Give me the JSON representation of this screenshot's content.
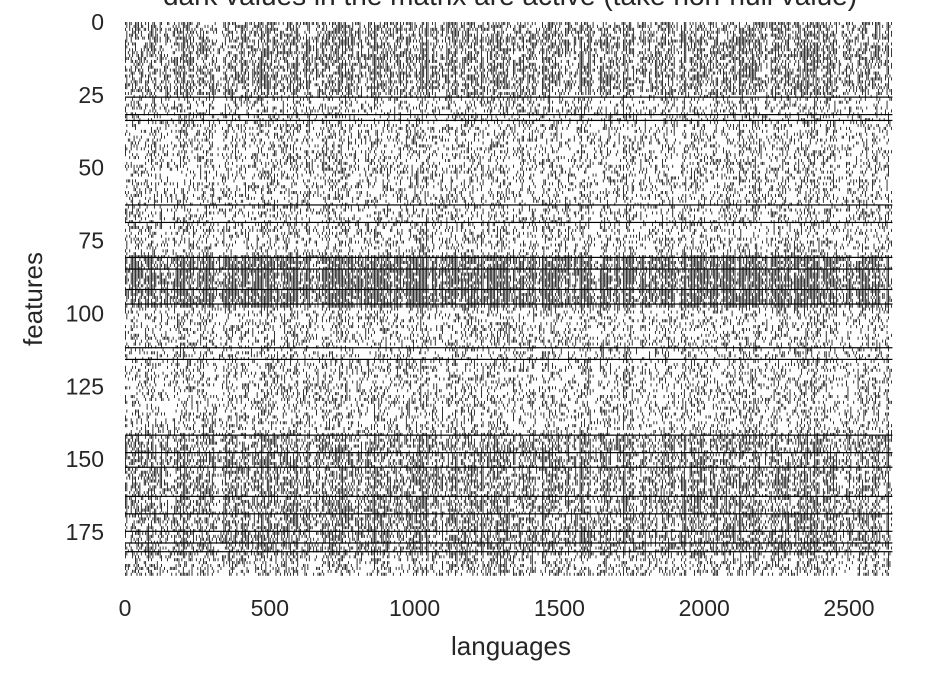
{
  "chart_data": {
    "type": "heatmap",
    "title": "dark values in the matrix are active (take non-null value)",
    "xlabel": "languages",
    "ylabel": "features",
    "x_range": [
      0,
      2650
    ],
    "y_range": [
      0,
      190
    ],
    "y_inverted": true,
    "grid": false,
    "x_ticks": [
      0,
      500,
      1000,
      1500,
      2000,
      2500
    ],
    "y_ticks": [
      0,
      25,
      50,
      75,
      100,
      125,
      150,
      175
    ],
    "x_tick_labels": [
      "0",
      "500",
      "1000",
      "1500",
      "2000",
      "2500"
    ],
    "y_tick_labels": [
      "0",
      "25",
      "50",
      "75",
      "100",
      "125",
      "150",
      "175"
    ],
    "colors": {
      "active": "#000000",
      "inactive": "#ffffff",
      "text": "#262626"
    },
    "approx_active_density_by_feature_band": [
      {
        "features": [
          0,
          24
        ],
        "density": 0.55
      },
      {
        "features": [
          25,
          79
        ],
        "density": 0.3
      },
      {
        "features": [
          80,
          97
        ],
        "density": 0.8
      },
      {
        "features": [
          98,
          140
        ],
        "density": 0.3
      },
      {
        "features": [
          141,
          182
        ],
        "density": 0.55
      },
      {
        "features": [
          183,
          190
        ],
        "density": 0.35
      }
    ],
    "approx_fully_active_features": [
      25,
      31,
      33,
      62,
      68,
      80,
      84,
      91,
      96,
      111,
      115,
      141,
      147,
      152,
      162,
      168,
      174,
      178,
      181
    ]
  }
}
